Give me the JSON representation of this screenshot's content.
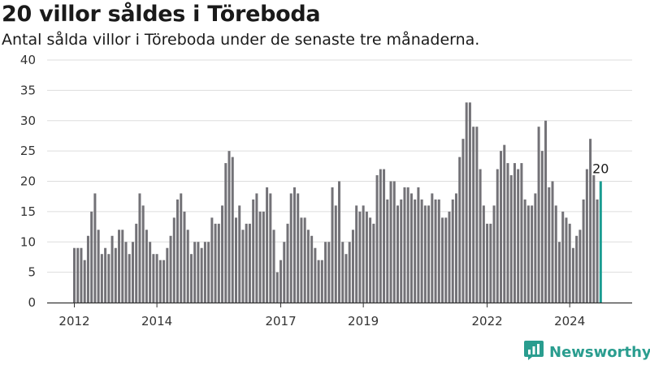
{
  "title": "20 villor såldes i Töreboda",
  "subtitle": "Antal sålda villor i Töreboda under de senaste tre månaderna.",
  "brand": {
    "name": "Newsworthy",
    "color": "#2a9d8f",
    "icon": "newsworthy-logo-icon"
  },
  "colors": {
    "bar": "#737277",
    "highlight": "#1a9c91",
    "grid": "#dddddd",
    "axis": "#333333"
  },
  "chart_data": {
    "type": "bar",
    "title": "20 villor såldes i Töreboda",
    "subtitle": "Antal sålda villor i Töreboda under de senaste tre månaderna.",
    "xlabel": "",
    "ylabel": "",
    "ylim": [
      0,
      40
    ],
    "yticks": [
      0,
      5,
      10,
      15,
      20,
      25,
      30,
      35,
      40
    ],
    "grid": true,
    "x_start": "2012-01",
    "x_tick_labels": [
      "2012",
      "2014",
      "2017",
      "2019",
      "2022",
      "2024"
    ],
    "x_tick_dates": [
      "2012-01",
      "2014-01",
      "2017-01",
      "2019-01",
      "2022-01",
      "2024-01"
    ],
    "x_end": "2025-07",
    "values": [
      9,
      9,
      9,
      7,
      11,
      15,
      18,
      12,
      8,
      9,
      8,
      11,
      9,
      12,
      12,
      10,
      8,
      10,
      13,
      18,
      16,
      12,
      10,
      8,
      8,
      7,
      7,
      9,
      11,
      14,
      17,
      18,
      15,
      12,
      8,
      10,
      10,
      9,
      10,
      10,
      14,
      13,
      13,
      16,
      23,
      25,
      24,
      14,
      16,
      12,
      13,
      13,
      17,
      18,
      15,
      15,
      19,
      18,
      12,
      5,
      7,
      10,
      13,
      18,
      19,
      18,
      14,
      14,
      12,
      11,
      9,
      7,
      7,
      10,
      10,
      19,
      16,
      20,
      10,
      8,
      10,
      12,
      16,
      15,
      16,
      15,
      14,
      13,
      21,
      22,
      22,
      17,
      20,
      20,
      16,
      17,
      19,
      19,
      18,
      17,
      19,
      17,
      16,
      16,
      18,
      17,
      17,
      14,
      14,
      15,
      17,
      18,
      24,
      27,
      33,
      33,
      29,
      29,
      22,
      16,
      13,
      13,
      16,
      22,
      25,
      26,
      23,
      21,
      23,
      22,
      23,
      17,
      16,
      16,
      18,
      29,
      25,
      30,
      19,
      20,
      16,
      10,
      15,
      14,
      13,
      9,
      11,
      12,
      17,
      22,
      27,
      21,
      17,
      20
    ],
    "highlight_last": true,
    "annotations": [
      {
        "label": "20"
      }
    ]
  }
}
